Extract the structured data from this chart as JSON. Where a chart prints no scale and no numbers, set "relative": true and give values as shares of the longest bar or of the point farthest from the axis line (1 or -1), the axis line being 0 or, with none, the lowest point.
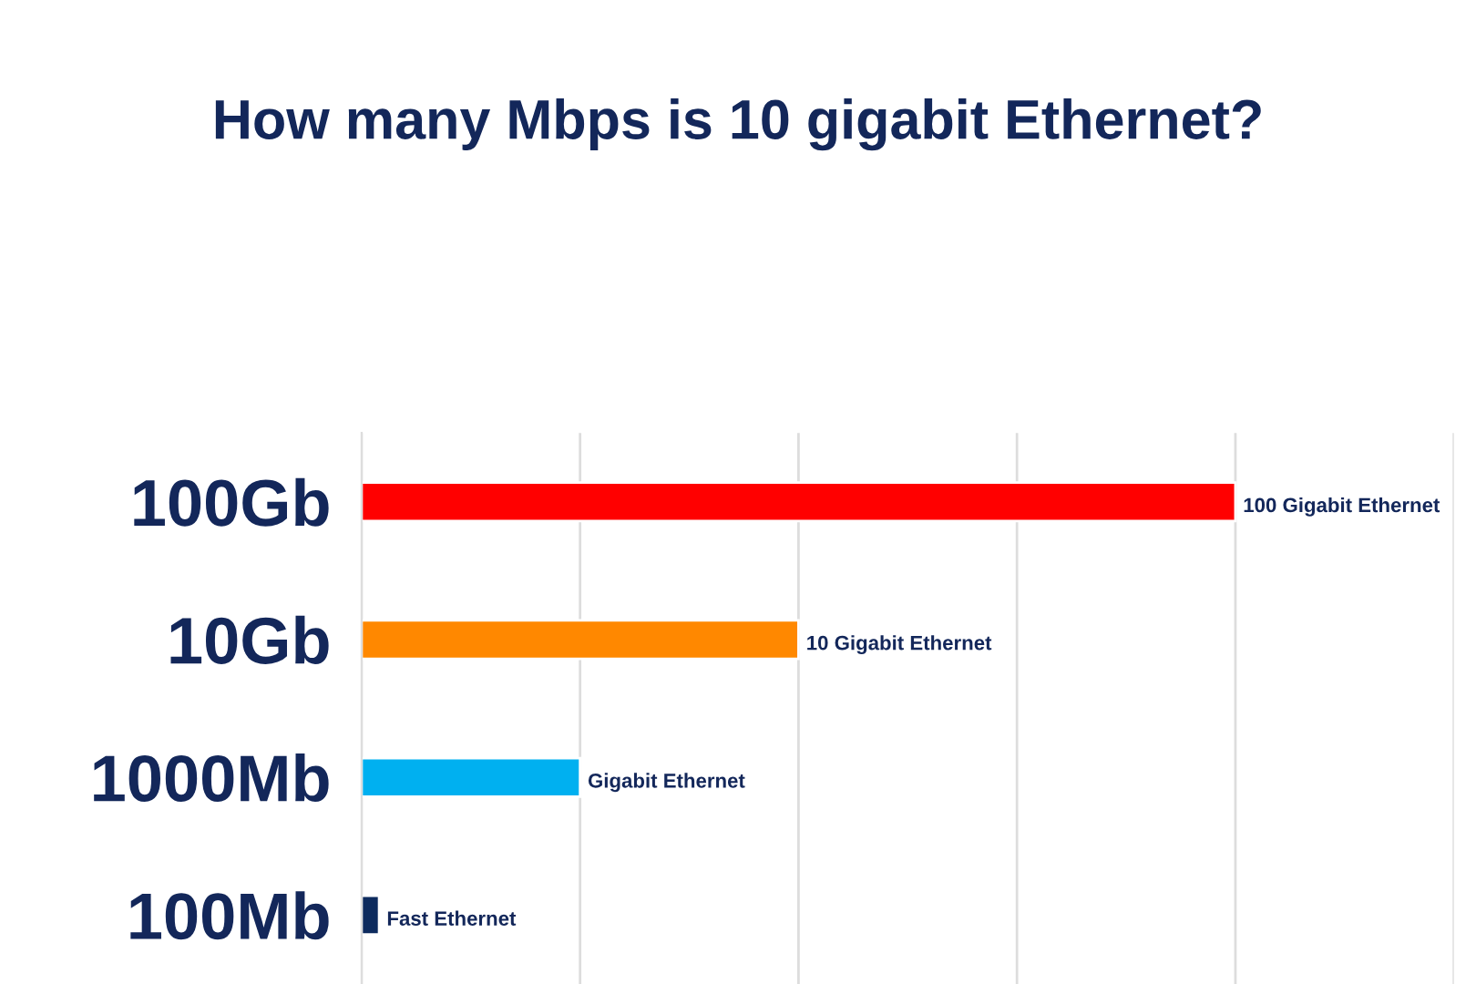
{
  "chart_data": {
    "type": "bar",
    "orientation": "horizontal",
    "relative": true,
    "title": "How many Mbps is 10 gigabit Ethernet?",
    "categories": [
      "100Gb",
      "10Gb",
      "1000Mb",
      "100Mb"
    ],
    "values": [
      1,
      0.5,
      0.25,
      0.02
    ],
    "colors": [
      "#ff0000",
      "#ff8800",
      "#00b0f0",
      "#0d2b5e"
    ],
    "annotations": [
      {
        "text": "100 Gigabit Ethernet",
        "x": 1,
        "y": "100Gb"
      },
      {
        "text": "10 Gigabit Ethernet",
        "x": 0.5,
        "y": "10Gb"
      },
      {
        "text": "Gigabit Ethernet",
        "x": 0.25,
        "y": "1000Mb"
      },
      {
        "text": "Fast Ethernet",
        "x": 0.02,
        "y": "100Mb"
      }
    ],
    "grid": "x",
    "legend": false
  }
}
